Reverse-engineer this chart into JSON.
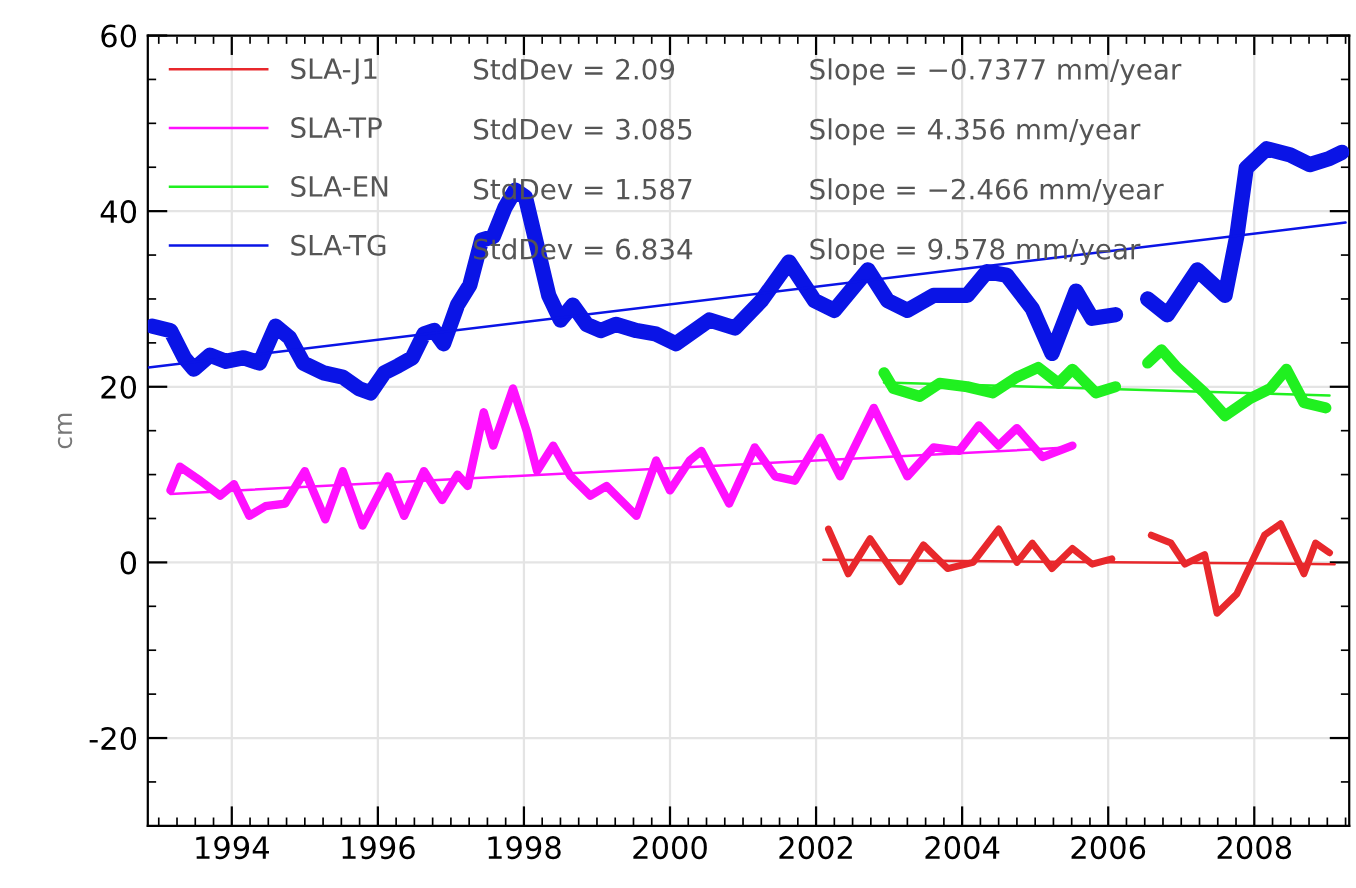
{
  "chart_data": {
    "type": "line",
    "ylabel": "cm",
    "xlim": [
      1992.85,
      2009.3
    ],
    "ylim": [
      -30,
      60
    ],
    "xticks": [
      1994,
      1996,
      1998,
      2000,
      2002,
      2004,
      2006,
      2008
    ],
    "yticks": [
      -20,
      0,
      20,
      40,
      60
    ],
    "grid": true,
    "legend": "top left",
    "marker": "none",
    "line_style": "solid",
    "series": [
      {
        "name": "SLA-J1",
        "color": "#e8282c",
        "x": [
          2002.17,
          2002.44,
          2002.74,
          2002.93,
          2003.15,
          2003.47,
          2003.8,
          2004.15,
          2004.5,
          2004.75,
          2004.96,
          2005.23,
          2005.51,
          2005.78,
          2006.05,
          2006.3,
          2006.59,
          2006.86,
          2007.05,
          2007.32,
          2007.49,
          2007.76,
          2008.14,
          2008.36,
          2008.68,
          2008.84,
          2009.03
        ],
        "values": [
          3.8,
          -1.3,
          2.7,
          0.4,
          -2.2,
          2.0,
          -0.7,
          0.0,
          3.8,
          0.0,
          2.2,
          -0.7,
          1.6,
          -0.2,
          0.4,
          null,
          3.1,
          2.2,
          -0.2,
          0.9,
          -5.8,
          -3.6,
          3.1,
          4.4,
          -1.3,
          2.2,
          1.1
        ]
      },
      {
        "name": "SLA-TP",
        "color": "#ff10ff",
        "x": [
          1993.16,
          1993.29,
          1993.57,
          1993.84,
          1994.03,
          1994.24,
          1994.46,
          1994.73,
          1995.0,
          1995.28,
          1995.52,
          1995.79,
          1996.14,
          1996.36,
          1996.63,
          1996.88,
          1997.09,
          1997.23,
          1997.45,
          1997.58,
          1997.85,
          1998.04,
          1998.18,
          1998.4,
          1998.64,
          1998.91,
          1999.13,
          1999.54,
          1999.81,
          2000.0,
          2000.27,
          2000.43,
          2000.81,
          2001.16,
          2001.44,
          2001.71,
          2002.06,
          2002.33,
          2002.79,
          2003.25,
          2003.61,
          2003.96,
          2004.23,
          2004.5,
          2004.75,
          2005.1,
          2005.51
        ],
        "values": [
          8.2,
          10.9,
          9.3,
          7.6,
          8.9,
          5.3,
          6.4,
          6.7,
          10.4,
          4.9,
          10.4,
          4.2,
          9.8,
          5.3,
          10.4,
          7.1,
          10.0,
          8.7,
          17.1,
          13.3,
          19.8,
          14.9,
          10.4,
          13.3,
          9.8,
          7.6,
          8.7,
          5.3,
          11.6,
          8.2,
          11.6,
          12.7,
          6.7,
          13.1,
          9.8,
          9.3,
          14.2,
          9.8,
          17.6,
          9.8,
          13.1,
          12.7,
          15.6,
          13.3,
          15.3,
          12.0,
          13.3
        ]
      },
      {
        "name": "SLA-EN",
        "color": "#20f020",
        "x": [
          2002.93,
          2003.06,
          2003.42,
          2003.69,
          2004.07,
          2004.42,
          2004.75,
          2005.04,
          2005.32,
          2005.51,
          2005.83,
          2006.1,
          2006.3,
          2006.54,
          2006.73,
          2006.94,
          2007.32,
          2007.6,
          2007.95,
          2008.22,
          2008.44,
          2008.68,
          2008.98
        ],
        "values": [
          21.6,
          19.8,
          18.9,
          20.4,
          20.0,
          19.3,
          21.1,
          22.2,
          20.4,
          22.0,
          19.3,
          20.0,
          null,
          22.7,
          24.2,
          22.2,
          19.3,
          16.7,
          18.7,
          19.8,
          22.0,
          18.2,
          17.6
        ]
      },
      {
        "name": "SLA-TG",
        "color": "#0a14e6",
        "x": [
          1992.91,
          1993.16,
          1993.35,
          1993.48,
          1993.7,
          1993.92,
          1994.16,
          1994.38,
          1994.6,
          1994.79,
          1994.98,
          1995.25,
          1995.52,
          1995.74,
          1995.9,
          1996.09,
          1996.28,
          1996.47,
          1996.63,
          1996.77,
          1996.9,
          1997.09,
          1997.26,
          1997.42,
          1997.58,
          1997.74,
          1997.88,
          1998.02,
          1998.18,
          1998.34,
          1998.5,
          1998.67,
          1998.86,
          1999.05,
          1999.26,
          1999.54,
          1999.81,
          2000.08,
          2000.54,
          2000.89,
          2001.25,
          2001.63,
          2001.98,
          2002.25,
          2002.71,
          2002.98,
          2003.25,
          2003.61,
          2004.07,
          2004.34,
          2004.61,
          2004.96,
          2005.23,
          2005.56,
          2005.78,
          2006.1,
          2006.3,
          2006.54,
          2006.81,
          2007.22,
          2007.6,
          2007.76,
          2007.89,
          2008.17,
          2008.49,
          2008.76,
          2009.03,
          2009.2
        ],
        "values": [
          26.9,
          26.4,
          23.3,
          22.0,
          23.6,
          22.9,
          23.3,
          22.7,
          26.9,
          25.6,
          22.7,
          21.6,
          21.1,
          19.8,
          19.3,
          21.6,
          22.4,
          23.3,
          26.0,
          26.4,
          24.9,
          29.3,
          31.6,
          36.7,
          37.1,
          40.4,
          42.4,
          41.6,
          36.0,
          30.4,
          27.6,
          29.3,
          27.1,
          26.4,
          27.1,
          26.4,
          26.0,
          24.9,
          27.6,
          26.7,
          29.8,
          34.2,
          29.8,
          28.7,
          33.3,
          29.8,
          28.7,
          30.4,
          30.4,
          33.1,
          32.7,
          28.9,
          23.8,
          30.9,
          27.8,
          28.2,
          null,
          30.0,
          28.2,
          33.3,
          30.4,
          37.1,
          44.9,
          47.1,
          46.4,
          45.3,
          46.0,
          46.7
        ]
      },
      {
        "color": "#e8282c",
        "x": [
          2002.1,
          2009.1
        ],
        "values": [
          0.3,
          -0.2
        ]
      },
      {
        "color": "#ff10ff",
        "x": [
          1993.16,
          2005.5
        ],
        "values": [
          7.8,
          13.1
        ]
      },
      {
        "color": "#20f020",
        "x": [
          2002.93,
          2009.03
        ],
        "values": [
          20.5,
          19.0
        ]
      },
      {
        "color": "#0a14e6",
        "x": [
          1992.86,
          2009.25
        ],
        "values": [
          22.2,
          38.7
        ]
      }
    ],
    "annotations": [
      "StdDev = 2.09",
      "Slope = −0.7377 mm/year",
      "StdDev = 3.085",
      "Slope = 4.356 mm/year",
      "StdDev = 1.587",
      "Slope = −2.466 mm/year",
      "StdDev = 6.834",
      "Slope = 9.578 mm/year"
    ]
  }
}
